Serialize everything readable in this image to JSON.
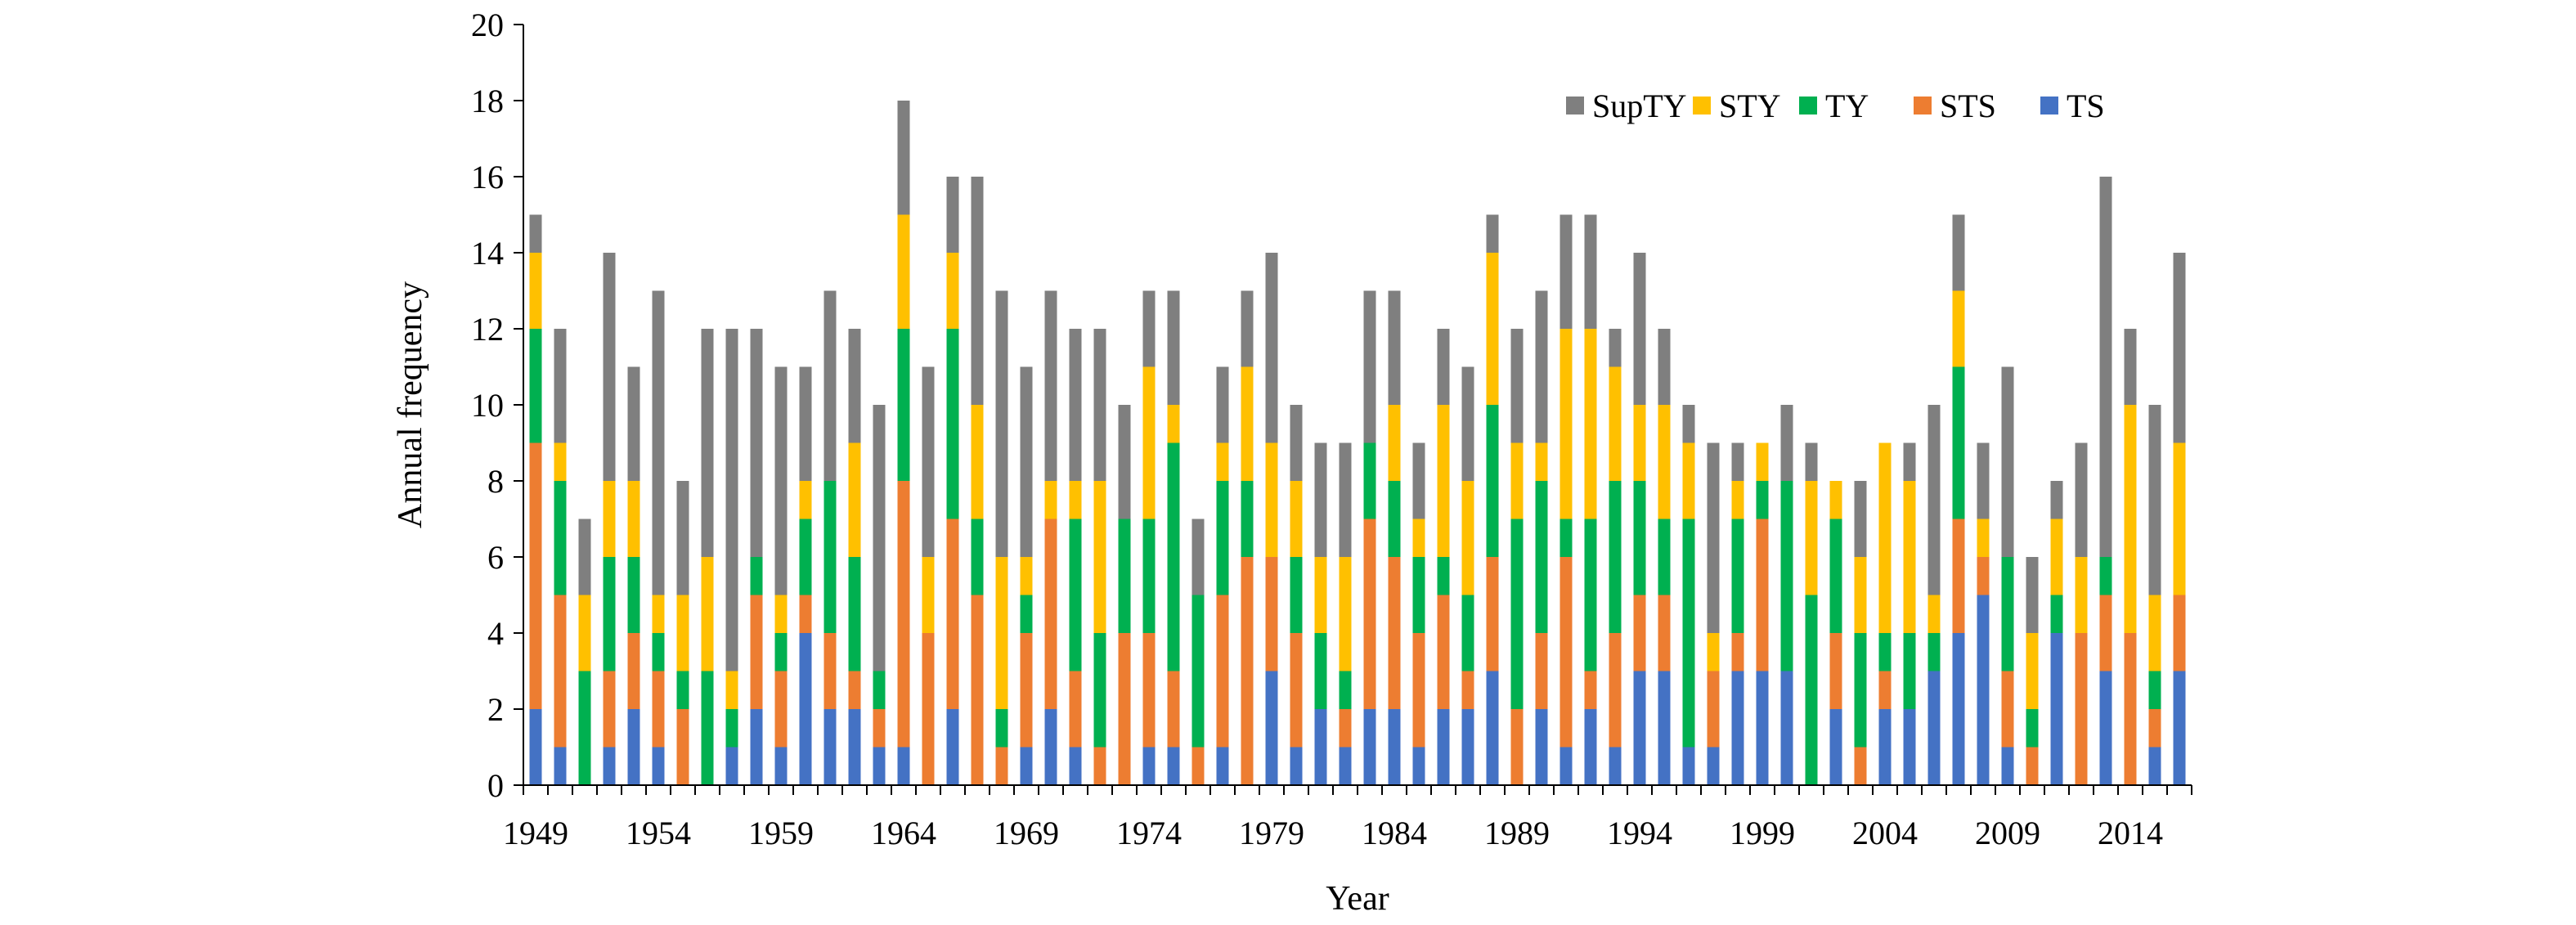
{
  "chart_data": {
    "type": "bar",
    "stacked": true,
    "title": "",
    "xlabel": "Year",
    "ylabel": "Annual frequency",
    "ylim": [
      0,
      20
    ],
    "y_ticks": [
      0,
      2,
      4,
      6,
      8,
      10,
      12,
      14,
      16,
      18,
      20
    ],
    "x_tick_labels": [
      "1949",
      "1954",
      "1959",
      "1964",
      "1969",
      "1974",
      "1979",
      "1984",
      "1989",
      "1994",
      "1999",
      "2004",
      "2009",
      "2014"
    ],
    "grid": false,
    "legend_position": "top-right",
    "categories": [
      1949,
      1950,
      1951,
      1952,
      1953,
      1954,
      1955,
      1956,
      1957,
      1958,
      1959,
      1960,
      1961,
      1962,
      1963,
      1964,
      1965,
      1966,
      1967,
      1968,
      1969,
      1970,
      1971,
      1972,
      1973,
      1974,
      1975,
      1976,
      1977,
      1978,
      1979,
      1980,
      1981,
      1982,
      1983,
      1984,
      1985,
      1986,
      1987,
      1988,
      1989,
      1990,
      1991,
      1992,
      1993,
      1994,
      1995,
      1996,
      1997,
      1998,
      1999,
      2000,
      2001,
      2002,
      2003,
      2004,
      2005,
      2006,
      2007,
      2008,
      2009,
      2010,
      2011,
      2012,
      2013,
      2014,
      2015,
      2016
    ],
    "series": [
      {
        "name": "TS",
        "color": "#4472C4",
        "values": [
          2,
          1,
          0,
          1,
          2,
          1,
          0,
          0,
          1,
          2,
          1,
          4,
          2,
          2,
          1,
          1,
          0,
          2,
          0,
          0,
          1,
          2,
          1,
          0,
          0,
          1,
          1,
          0,
          1,
          0,
          3,
          1,
          2,
          1,
          2,
          2,
          1,
          2,
          2,
          3,
          0,
          2,
          1,
          2,
          1,
          3,
          3,
          1,
          1,
          3,
          3,
          3,
          0,
          2,
          0,
          2,
          2,
          3,
          4,
          5,
          1,
          0,
          4,
          0,
          3,
          0,
          1,
          3
        ]
      },
      {
        "name": "STS",
        "color": "#ED7D31",
        "values": [
          7,
          4,
          0,
          2,
          2,
          2,
          2,
          0,
          0,
          3,
          2,
          1,
          2,
          1,
          1,
          7,
          4,
          5,
          5,
          1,
          3,
          5,
          2,
          1,
          4,
          3,
          2,
          1,
          4,
          6,
          3,
          3,
          0,
          1,
          5,
          4,
          3,
          3,
          1,
          3,
          2,
          2,
          5,
          1,
          3,
          2,
          2,
          0,
          2,
          1,
          4,
          0,
          0,
          2,
          1,
          1,
          0,
          0,
          3,
          1,
          2,
          1,
          0,
          4,
          2,
          4,
          1,
          2
        ]
      },
      {
        "name": "TY",
        "color": "#00B050",
        "values": [
          3,
          3,
          3,
          3,
          2,
          1,
          1,
          3,
          1,
          1,
          1,
          2,
          4,
          3,
          1,
          4,
          0,
          5,
          2,
          1,
          1,
          0,
          4,
          3,
          3,
          3,
          6,
          4,
          3,
          2,
          0,
          2,
          2,
          1,
          2,
          2,
          2,
          1,
          2,
          4,
          5,
          4,
          1,
          4,
          4,
          3,
          2,
          6,
          0,
          3,
          1,
          5,
          5,
          3,
          3,
          1,
          2,
          1,
          4,
          0,
          3,
          1,
          1,
          0,
          1,
          0,
          1,
          0
        ]
      },
      {
        "name": "STY",
        "color": "#FFC000",
        "values": [
          2,
          1,
          2,
          2,
          2,
          1,
          2,
          3,
          1,
          0,
          1,
          1,
          0,
          3,
          0,
          3,
          2,
          2,
          3,
          4,
          1,
          1,
          1,
          4,
          0,
          4,
          1,
          0,
          1,
          3,
          3,
          2,
          2,
          3,
          0,
          2,
          1,
          4,
          3,
          4,
          2,
          1,
          5,
          5,
          3,
          2,
          3,
          2,
          1,
          1,
          1,
          0,
          3,
          1,
          2,
          5,
          4,
          1,
          2,
          1,
          0,
          2,
          2,
          2,
          0,
          6,
          2,
          4
        ]
      },
      {
        "name": "SupTY",
        "color": "#7F7F7F",
        "values": [
          1,
          3,
          2,
          6,
          3,
          8,
          3,
          6,
          9,
          6,
          6,
          3,
          5,
          3,
          7,
          3,
          5,
          2,
          6,
          7,
          5,
          5,
          4,
          4,
          3,
          2,
          3,
          2,
          2,
          2,
          5,
          2,
          3,
          3,
          4,
          3,
          2,
          2,
          3,
          1,
          3,
          4,
          3,
          3,
          1,
          4,
          2,
          1,
          5,
          1,
          0,
          2,
          1,
          0,
          2,
          0,
          1,
          5,
          2,
          2,
          5,
          2,
          1,
          3,
          10,
          2,
          5,
          5
        ]
      }
    ]
  }
}
